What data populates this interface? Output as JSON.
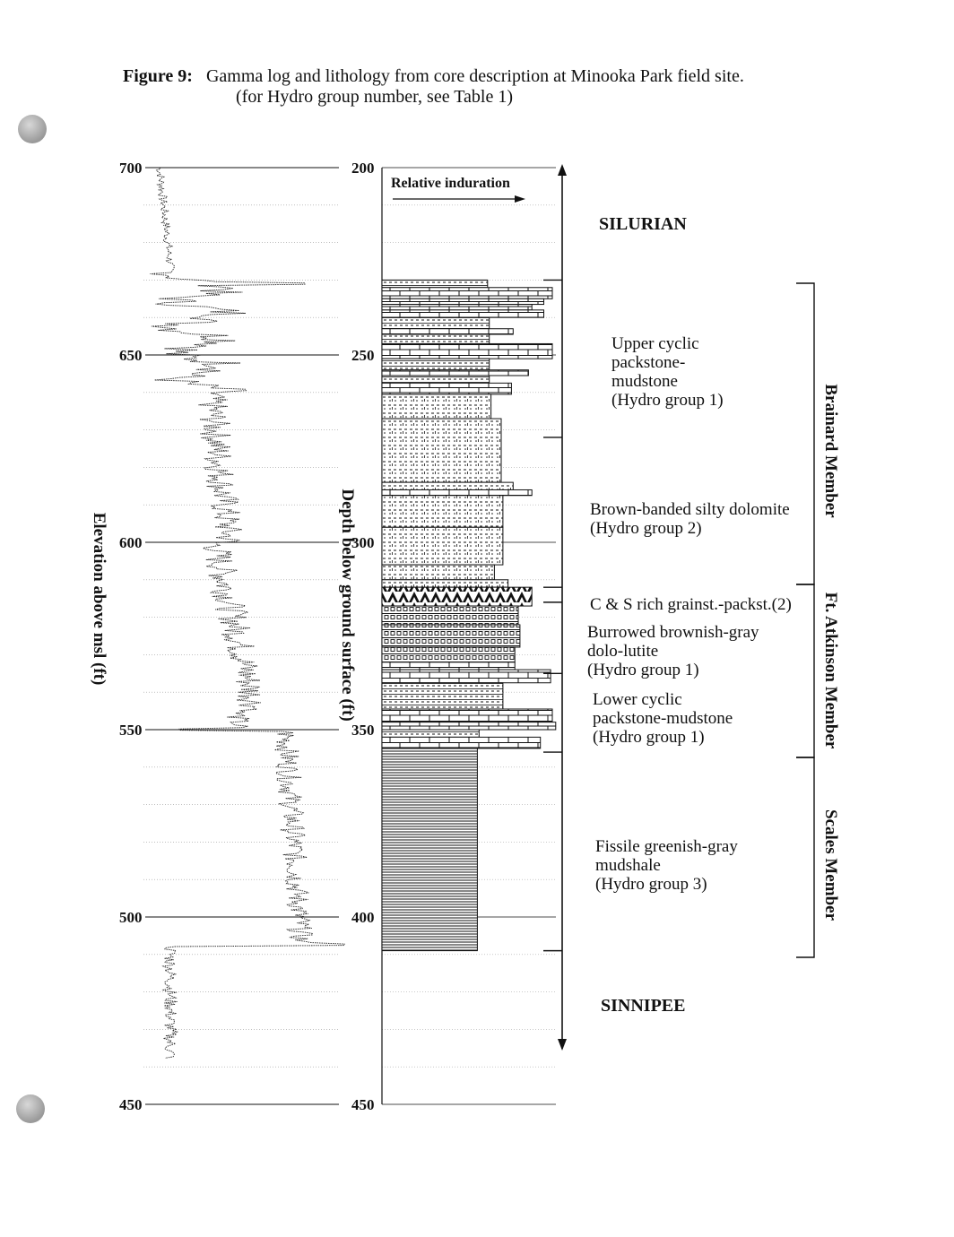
{
  "caption": {
    "figure_label": "Figure 9:",
    "title": "Gamma log and lithology from core description at Minooka Park field site.",
    "note": "(for Hydro group number, see Table 1)"
  },
  "elevation_axis": {
    "label": "Elevation above msl (ft)",
    "ticks": [
      "700",
      "650",
      "600",
      "550",
      "500",
      "450"
    ]
  },
  "depth_axis": {
    "label": "Depth below ground surface (ft)",
    "ticks": [
      "200",
      "250",
      "300",
      "350",
      "400",
      "450"
    ]
  },
  "induration": {
    "label": "Relative induration"
  },
  "formations": {
    "top": "SILURIAN",
    "bottom": "SINNIPEE"
  },
  "units": [
    {
      "lines": [
        "Upper cyclic",
        "packstone-",
        "mudstone",
        "(Hydro group 1)"
      ]
    },
    {
      "lines": [
        "Brown-banded silty dolomite",
        "(Hydro group 2)"
      ]
    },
    {
      "lines": [
        "C & S rich grainst.-packst.(2)"
      ]
    },
    {
      "lines": [
        "Burrowed brownish-gray",
        "dolo-lutite",
        "(Hydro group 1)"
      ]
    },
    {
      "lines": [
        "Lower cyclic",
        "packstone-mudstone",
        "(Hydro group 1)"
      ]
    },
    {
      "lines": [
        "Fissile greenish-gray",
        "mudshale",
        "(Hydro group 3)"
      ]
    }
  ],
  "members": [
    "Brainard Member",
    "Ft. Atkinson Member",
    "Scales Member"
  ],
  "lithology": [
    {
      "top": 230,
      "bottom": 232,
      "type": "mud",
      "ind": 0.62
    },
    {
      "top": 232,
      "bottom": 235,
      "type": "lime",
      "ind": 1.0
    },
    {
      "top": 235,
      "bottom": 236.5,
      "type": "lime",
      "ind": 0.95
    },
    {
      "top": 236.5,
      "bottom": 238,
      "type": "lime",
      "ind": 0.88
    },
    {
      "top": 238,
      "bottom": 240,
      "type": "lime",
      "ind": 0.95
    },
    {
      "top": 240,
      "bottom": 243,
      "type": "mud",
      "ind": 0.63
    },
    {
      "top": 243,
      "bottom": 244.5,
      "type": "lime",
      "ind": 0.77
    },
    {
      "top": 244.5,
      "bottom": 247,
      "type": "mud",
      "ind": 0.63
    },
    {
      "top": 247,
      "bottom": 251,
      "type": "lime",
      "ind": 1.0
    },
    {
      "top": 251,
      "bottom": 254,
      "type": "mud",
      "ind": 0.63
    },
    {
      "top": 254,
      "bottom": 255.5,
      "type": "lime",
      "ind": 0.86
    },
    {
      "top": 255.5,
      "bottom": 257.5,
      "type": "mud",
      "ind": 0.63
    },
    {
      "top": 257.5,
      "bottom": 260.5,
      "type": "lime",
      "ind": 0.76
    },
    {
      "top": 260.5,
      "bottom": 267,
      "type": "dolo",
      "ind": 0.64
    },
    {
      "top": 267,
      "bottom": 284,
      "type": "dolo",
      "ind": 0.7
    },
    {
      "top": 284,
      "bottom": 286,
      "type": "dolo",
      "ind": 0.77
    },
    {
      "top": 286,
      "bottom": 287.5,
      "type": "lime",
      "ind": 0.88
    },
    {
      "top": 287.5,
      "bottom": 296,
      "type": "dolo",
      "ind": 0.71
    },
    {
      "top": 296,
      "bottom": 306,
      "type": "dolo",
      "ind": 0.71
    },
    {
      "top": 306,
      "bottom": 310,
      "type": "dolo",
      "ind": 0.66
    },
    {
      "top": 310,
      "bottom": 312,
      "type": "dolo",
      "ind": 0.74
    },
    {
      "top": 312,
      "bottom": 317,
      "type": "cs",
      "ind": 0.88
    },
    {
      "top": 317,
      "bottom": 322,
      "type": "burrow",
      "ind": 0.8
    },
    {
      "top": 322,
      "bottom": 328,
      "type": "burrow",
      "ind": 0.81
    },
    {
      "top": 328,
      "bottom": 332,
      "type": "burrow",
      "ind": 0.78
    },
    {
      "top": 332,
      "bottom": 334,
      "type": "lime",
      "ind": 0.78
    },
    {
      "top": 334,
      "bottom": 337.5,
      "type": "lime",
      "ind": 0.99
    },
    {
      "top": 337.5,
      "bottom": 344.5,
      "type": "mud",
      "ind": 0.71
    },
    {
      "top": 344.5,
      "bottom": 348,
      "type": "lime",
      "ind": 1.0
    },
    {
      "top": 348,
      "bottom": 350,
      "type": "lime",
      "ind": 1.02
    },
    {
      "top": 350,
      "bottom": 352,
      "type": "mud",
      "ind": 0.57
    },
    {
      "top": 352,
      "bottom": 355,
      "type": "lime",
      "ind": 0.93
    },
    {
      "top": 355,
      "bottom": 409,
      "type": "shale",
      "ind": 0.56
    }
  ]
}
